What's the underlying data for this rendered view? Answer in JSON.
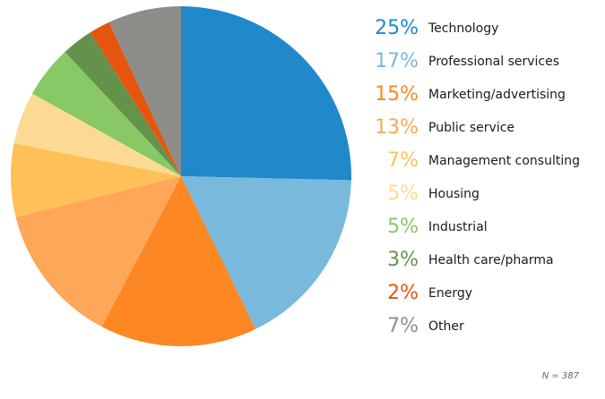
{
  "chart_data": {
    "type": "pie",
    "title": "",
    "slices": [
      {
        "label": "Technology",
        "pct_label": "25%",
        "value": 25.5,
        "color": "#2188cb"
      },
      {
        "label": "Professional services",
        "pct_label": "17%",
        "value": 17.5,
        "color": "#79b9dc"
      },
      {
        "label": "Marketing/advertising",
        "pct_label": "15%",
        "value": 15.0,
        "color": "#fd8722"
      },
      {
        "label": "Public service",
        "pct_label": "13%",
        "value": 13.5,
        "color": "#fea758"
      },
      {
        "label": "Management consulting",
        "pct_label": "7%",
        "value": 7.0,
        "color": "#fec157"
      },
      {
        "label": "Housing",
        "pct_label": "5%",
        "value": 5.0,
        "color": "#fdda93"
      },
      {
        "label": "Industrial",
        "pct_label": "5%",
        "value": 5.0,
        "color": "#89c866"
      },
      {
        "label": "Health care/pharma",
        "pct_label": "3%",
        "value": 3.0,
        "color": "#64924b"
      },
      {
        "label": "Energy",
        "pct_label": "2%",
        "value": 2.0,
        "color": "#e6550d"
      },
      {
        "label": "Other",
        "pct_label": "7%",
        "value": 7.0,
        "color": "#8d8d89"
      }
    ],
    "start_angle": "12 o'clock",
    "direction": "clockwise",
    "legend_position": "right",
    "note": "N = 387"
  }
}
